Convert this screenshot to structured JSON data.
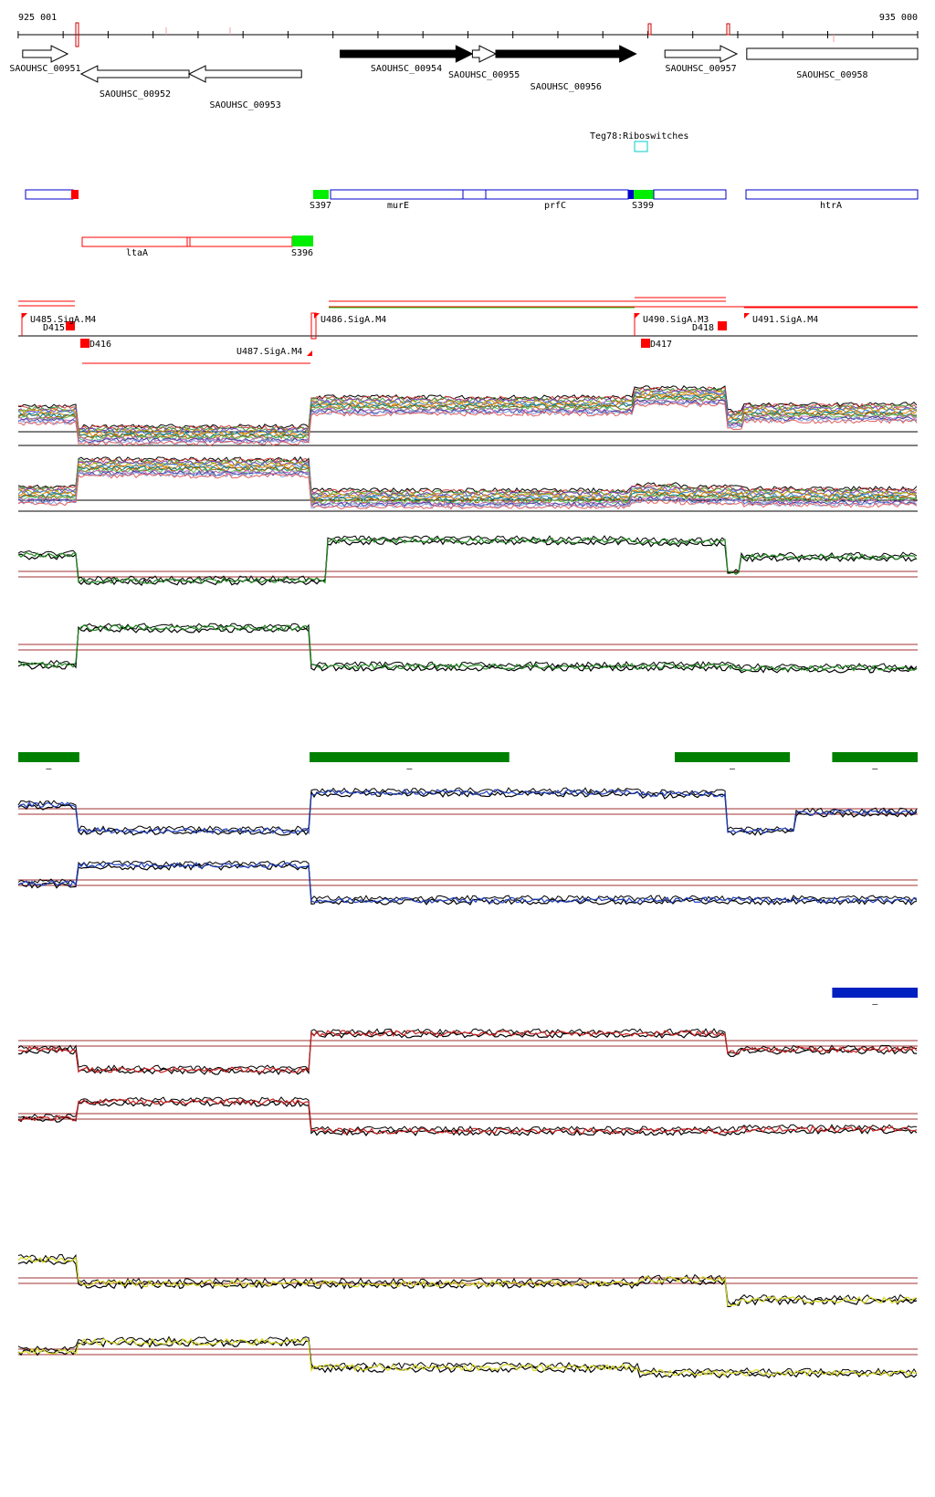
{
  "ruler": {
    "start_label": "925 001",
    "end_label": "935 000",
    "start_bp": 925001,
    "end_bp": 935000,
    "tick_every_bp": 500
  },
  "genes": [
    {
      "name": "SAOUHSC_00951",
      "start": 925050,
      "end": 925550,
      "strand": "+",
      "fill": "#ffffff"
    },
    {
      "name": "SAOUHSC_00952",
      "start": 925700,
      "end": 926900,
      "strand": "-",
      "fill": "#ffffff"
    },
    {
      "name": "SAOUHSC_00953",
      "start": 926900,
      "end": 928150,
      "strand": "-",
      "fill": "#ffffff"
    },
    {
      "name": "SAOUHSC_00954",
      "start": 928580,
      "end": 930050,
      "strand": "+",
      "fill": "#000000"
    },
    {
      "name": "SAOUHSC_00955",
      "start": 930050,
      "end": 930310,
      "strand": "+",
      "fill": "#ffffff"
    },
    {
      "name": "SAOUHSC_00956",
      "start": 930310,
      "end": 931870,
      "strand": "+",
      "fill": "#000000"
    },
    {
      "name": "SAOUHSC_00957",
      "start": 932190,
      "end": 932990,
      "strand": "+",
      "fill": "#ffffff"
    },
    {
      "name": "SAOUHSC_00958",
      "start": 933100,
      "end": 935000,
      "strand": "none",
      "fill": "#ffffff"
    }
  ],
  "riboswitch": {
    "label": "Teg78:Riboswitches",
    "start": 931620,
    "end": 931760
  },
  "transcripts_plus": [
    {
      "label": "",
      "start": 925100,
      "end": 925650,
      "color": "#0000cc"
    },
    {
      "label": "murE",
      "start": 928580,
      "end": 930050,
      "color": "#0000cc"
    },
    {
      "label": "prfC",
      "start": 930310,
      "end": 931870,
      "color": "#0000cc"
    },
    {
      "label": "",
      "start": 931870,
      "end": 932800,
      "color": "#0000cc"
    },
    {
      "label": "htrA",
      "start": 933100,
      "end": 935000,
      "color": "#0000cc"
    }
  ],
  "transcripts_minus": [
    {
      "label": "ltaA",
      "start": 925700,
      "end": 928000,
      "color": "#ff0000"
    }
  ],
  "segment_labels": [
    "S397",
    "S399",
    "S396"
  ],
  "tss_labels": [
    "U485.SigA.M4",
    "D415",
    "D416",
    "U487.SigA.M4",
    "U486.SigA.M4",
    "U490.SigA.M3",
    "D418",
    "D417",
    "U491.SigA.M4"
  ],
  "green_blocks": [
    {
      "start": 925001,
      "end": 925680,
      "label": "–"
    },
    {
      "start": 928240,
      "end": 930460,
      "label": "–"
    },
    {
      "start": 932300,
      "end": 933580,
      "label": "–"
    },
    {
      "start": 934050,
      "end": 935000,
      "label": "–"
    }
  ],
  "blue_blocks": [
    {
      "start": 934050,
      "end": 935000,
      "label": "–"
    }
  ],
  "colors": {
    "gene_black": "#000000",
    "transcript_blue": "#0000cc",
    "transcript_red": "#ff0000",
    "segment_green": "#00ee00",
    "block_green": "#008000",
    "block_blue": "#0020c0",
    "ref_line": "#a03030",
    "riboswitch": "#00cccc",
    "series_green": "#228b22",
    "series_blue": "#1f3fbf",
    "series_red": "#cc2020",
    "series_yellow": "#d8d820"
  }
}
